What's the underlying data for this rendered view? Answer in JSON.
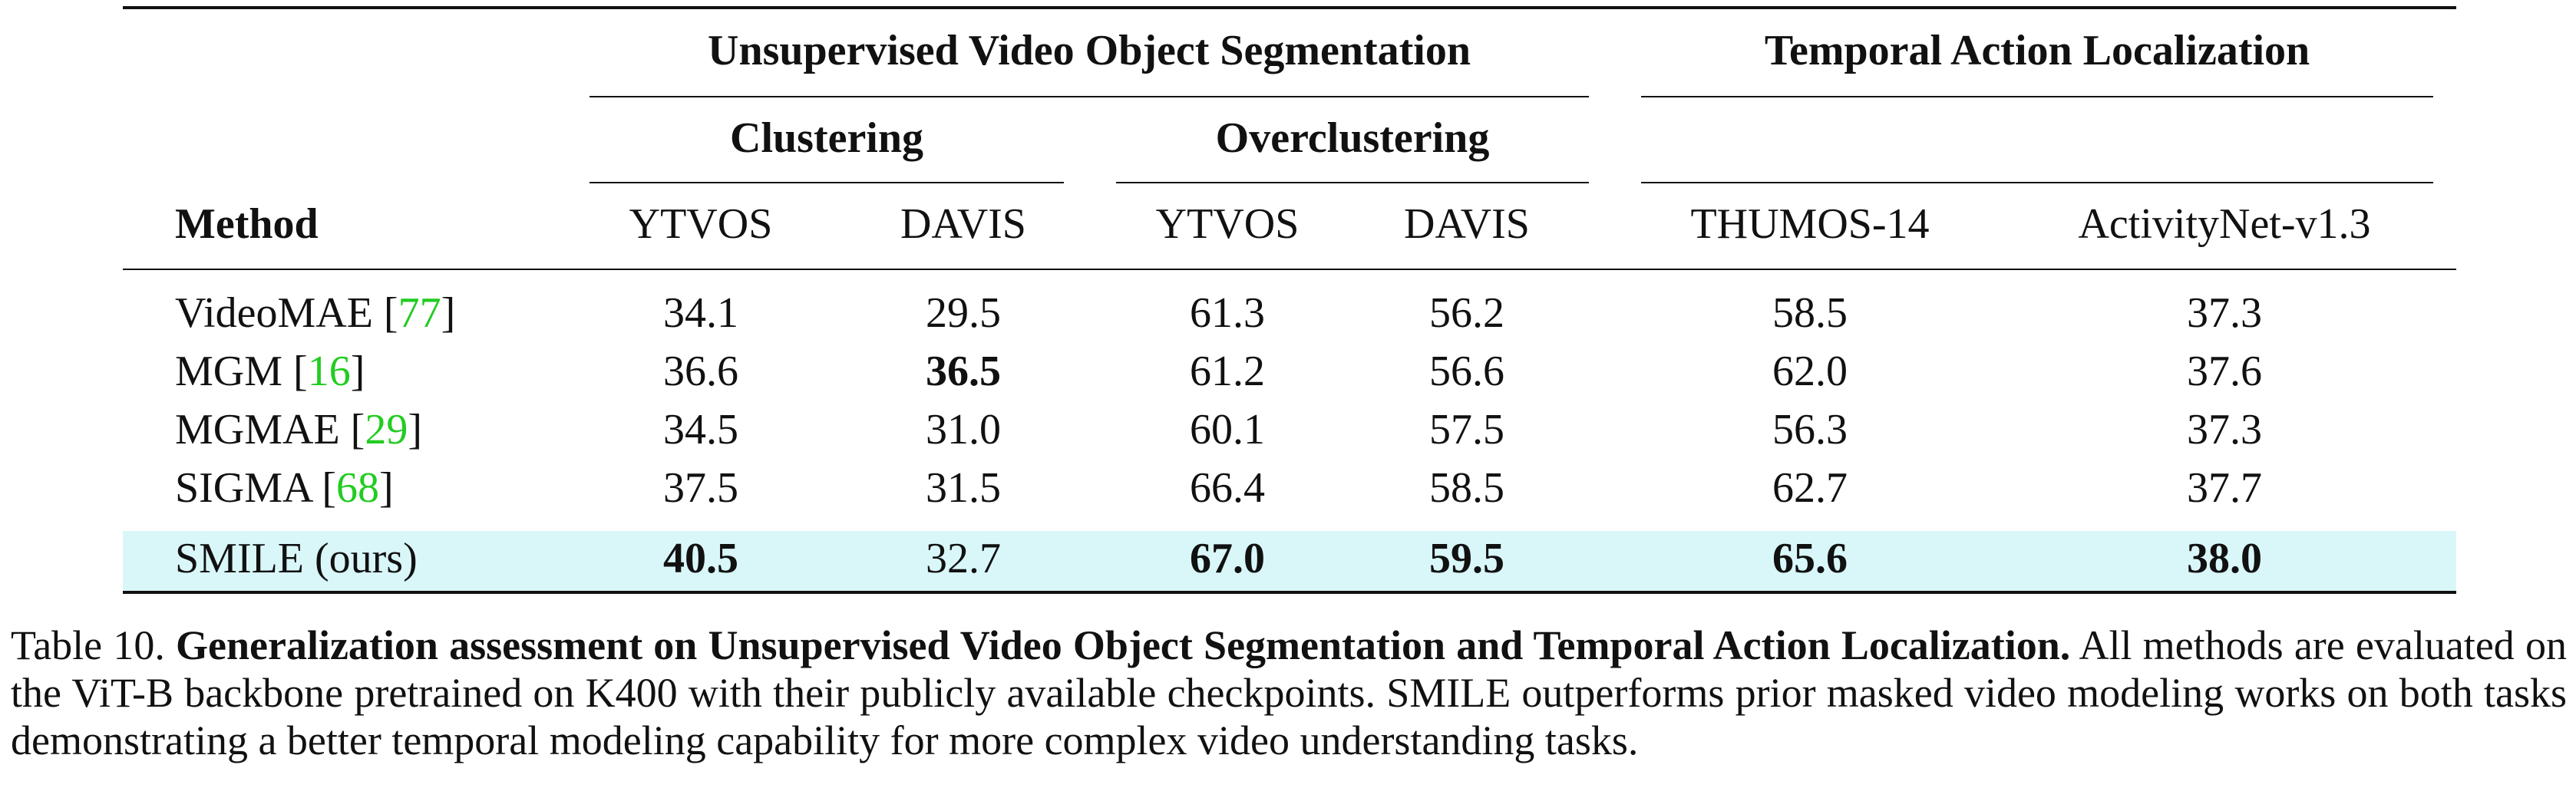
{
  "table": {
    "group_headers": {
      "uvos": "Unsupervised Video Object Segmentation",
      "tal": "Temporal Action Localization"
    },
    "sub_headers": {
      "clustering": "Clustering",
      "overclustering": "Overclustering"
    },
    "columns": [
      "Method",
      "YTVOS",
      "DAVIS",
      "YTVOS",
      "DAVIS",
      "THUMOS-14",
      "ActivityNet-v1.3"
    ],
    "rows": [
      {
        "method": "VideoMAE [",
        "cite": "77",
        "close": "]",
        "values": [
          "34.1",
          "29.5",
          "61.3",
          "56.2",
          "58.5",
          "37.3"
        ],
        "bold": [
          false,
          false,
          false,
          false,
          false,
          false
        ]
      },
      {
        "method": "MGM [",
        "cite": "16",
        "close": "]",
        "values": [
          "36.6",
          "36.5",
          "61.2",
          "56.6",
          "62.0",
          "37.6"
        ],
        "bold": [
          false,
          true,
          false,
          false,
          false,
          false
        ]
      },
      {
        "method": "MGMAE [",
        "cite": "29",
        "close": "]",
        "values": [
          "34.5",
          "31.0",
          "60.1",
          "57.5",
          "56.3",
          "37.3"
        ],
        "bold": [
          false,
          false,
          false,
          false,
          false,
          false
        ]
      },
      {
        "method": "SIGMA [",
        "cite": "68",
        "close": "]",
        "values": [
          "37.5",
          "31.5",
          "66.4",
          "58.5",
          "62.7",
          "37.7"
        ],
        "bold": [
          false,
          false,
          false,
          false,
          false,
          false
        ]
      },
      {
        "method": "SMILE (ours)",
        "cite": "",
        "close": "",
        "values": [
          "40.5",
          "32.7",
          "67.0",
          "59.5",
          "65.6",
          "38.0"
        ],
        "bold": [
          true,
          false,
          true,
          true,
          true,
          true
        ]
      }
    ],
    "highlight_color": "#d9f7f9",
    "cite_color": "#22cc22"
  },
  "caption": {
    "label": "Table 10.",
    "title": "Generalization assessment on Unsupervised Video Object Segmentation and Temporal Action Localization.",
    "body": "All methods are evaluated on the ViT-B backbone pretrained on K400 with their publicly available checkpoints. SMILE outperforms prior masked video modeling works on both tasks demonstrating a better temporal modeling capability for more complex video understanding tasks."
  }
}
